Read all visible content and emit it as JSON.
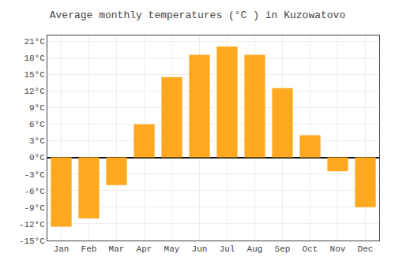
{
  "chart_data": {
    "type": "bar",
    "title": "Average monthly temperatures (°C ) in Kuzowatovo",
    "categories": [
      "Jan",
      "Feb",
      "Mar",
      "Apr",
      "May",
      "Jun",
      "Jul",
      "Aug",
      "Sep",
      "Oct",
      "Nov",
      "Dec"
    ],
    "values": [
      -12.5,
      -11.0,
      -5.0,
      6.0,
      14.5,
      18.5,
      20.0,
      18.5,
      12.5,
      4.0,
      -2.5,
      -9.0
    ],
    "color": "#FFA820",
    "ylim": [
      -15,
      22
    ],
    "yticks": [
      {
        "value": -15,
        "label": "-15°C"
      },
      {
        "value": -12,
        "label": "-12°C"
      },
      {
        "value": -9,
        "label": "-9°C"
      },
      {
        "value": -6,
        "label": "-6°C"
      },
      {
        "value": -3,
        "label": "-3°C"
      },
      {
        "value": 0,
        "label": "0°C"
      },
      {
        "value": 3,
        "label": "3°C"
      },
      {
        "value": 6,
        "label": "6°C"
      },
      {
        "value": 9,
        "label": "9°C"
      },
      {
        "value": 12,
        "label": "12°C"
      },
      {
        "value": 15,
        "label": "15°C"
      },
      {
        "value": 18,
        "label": "18°C"
      },
      {
        "value": 21,
        "label": "21°C"
      }
    ],
    "grid": true
  }
}
